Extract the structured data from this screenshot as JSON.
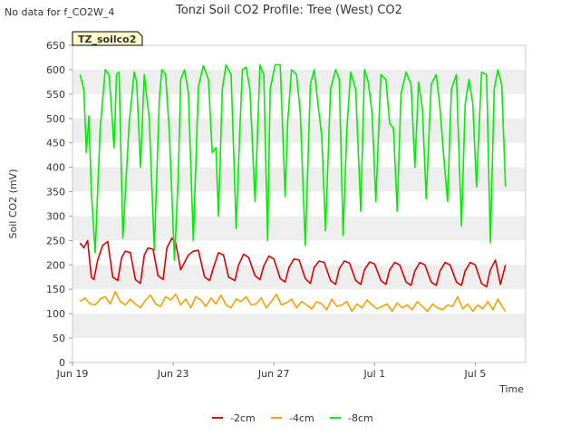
{
  "chart_data": {
    "type": "line",
    "title": "Tonzi Soil CO2 Profile: Tree (West) CO2",
    "note": "No data for f_CO2W_4",
    "badge": "TZ_soilco2",
    "xlabel": "Time",
    "ylabel": "Soil CO2 (mV)",
    "xlim": [
      0,
      18.0
    ],
    "ylim": [
      0,
      650
    ],
    "yticks": [
      0,
      50,
      100,
      150,
      200,
      250,
      300,
      350,
      400,
      450,
      500,
      550,
      600,
      650
    ],
    "xticks": [
      {
        "value": 0,
        "label": "Jun 19"
      },
      {
        "value": 4,
        "label": "Jun 23"
      },
      {
        "value": 8,
        "label": "Jun 27"
      },
      {
        "value": 12,
        "label": "Jul 1"
      },
      {
        "value": 16,
        "label": "Jul 5"
      }
    ],
    "grid": "horizontal bands",
    "legend": "bottom-center",
    "series": [
      {
        "name": "-2cm",
        "color": "#dd0000",
        "x": [
          0.3,
          0.45,
          0.6,
          0.75,
          0.85,
          1.0,
          1.2,
          1.4,
          1.6,
          1.8,
          1.95,
          2.1,
          2.3,
          2.5,
          2.7,
          2.85,
          3.0,
          3.2,
          3.4,
          3.6,
          3.75,
          3.95,
          4.1,
          4.3,
          4.45,
          4.6,
          4.8,
          5.0,
          5.25,
          5.45,
          5.6,
          5.8,
          6.0,
          6.2,
          6.45,
          6.6,
          6.8,
          7.0,
          7.25,
          7.45,
          7.6,
          7.8,
          8.0,
          8.25,
          8.45,
          8.6,
          8.8,
          9.0,
          9.25,
          9.45,
          9.6,
          9.8,
          10.0,
          10.25,
          10.45,
          10.6,
          10.8,
          11.0,
          11.25,
          11.45,
          11.6,
          11.8,
          12.0,
          12.25,
          12.45,
          12.6,
          12.8,
          13.0,
          13.25,
          13.45,
          13.6,
          13.8,
          14.0,
          14.25,
          14.45,
          14.6,
          14.8,
          15.0,
          15.25,
          15.45,
          15.6,
          15.8,
          16.0,
          16.25,
          16.45,
          16.6,
          16.8,
          17.0,
          17.2
        ],
        "y": [
          245,
          235,
          250,
          175,
          170,
          210,
          240,
          248,
          175,
          168,
          215,
          228,
          225,
          170,
          162,
          220,
          235,
          232,
          178,
          170,
          235,
          255,
          245,
          190,
          205,
          220,
          228,
          230,
          175,
          168,
          195,
          225,
          220,
          175,
          168,
          200,
          222,
          215,
          178,
          170,
          198,
          218,
          212,
          172,
          165,
          195,
          212,
          210,
          172,
          162,
          195,
          208,
          205,
          168,
          160,
          192,
          208,
          204,
          168,
          160,
          190,
          206,
          202,
          168,
          160,
          190,
          205,
          200,
          165,
          158,
          188,
          205,
          200,
          165,
          158,
          188,
          205,
          200,
          165,
          158,
          188,
          205,
          200,
          162,
          155,
          190,
          210,
          160,
          200
        ]
      },
      {
        "name": "-4cm",
        "color": "#f5a000",
        "x": [
          0.3,
          0.5,
          0.7,
          0.9,
          1.1,
          1.3,
          1.5,
          1.7,
          1.9,
          2.1,
          2.3,
          2.5,
          2.7,
          2.9,
          3.1,
          3.3,
          3.5,
          3.7,
          3.9,
          4.1,
          4.3,
          4.5,
          4.7,
          4.9,
          5.1,
          5.3,
          5.5,
          5.7,
          5.9,
          6.1,
          6.3,
          6.5,
          6.7,
          6.9,
          7.1,
          7.3,
          7.5,
          7.7,
          7.9,
          8.1,
          8.3,
          8.5,
          8.7,
          8.9,
          9.1,
          9.3,
          9.5,
          9.7,
          9.9,
          10.1,
          10.3,
          10.5,
          10.7,
          10.9,
          11.1,
          11.3,
          11.5,
          11.7,
          11.9,
          12.1,
          12.3,
          12.5,
          12.7,
          12.9,
          13.1,
          13.3,
          13.5,
          13.7,
          13.9,
          14.1,
          14.3,
          14.5,
          14.7,
          14.9,
          15.1,
          15.3,
          15.5,
          15.7,
          15.9,
          16.1,
          16.3,
          16.5,
          16.7,
          16.9,
          17.1,
          17.2
        ],
        "y": [
          125,
          132,
          120,
          118,
          130,
          135,
          120,
          145,
          125,
          118,
          130,
          120,
          112,
          128,
          138,
          120,
          115,
          135,
          128,
          140,
          118,
          130,
          112,
          135,
          128,
          115,
          132,
          120,
          138,
          118,
          112,
          130,
          125,
          135,
          118,
          120,
          132,
          112,
          125,
          140,
          118,
          122,
          130,
          112,
          125,
          118,
          110,
          125,
          120,
          108,
          130,
          115,
          118,
          125,
          105,
          120,
          112,
          128,
          118,
          110,
          115,
          120,
          105,
          122,
          112,
          118,
          108,
          125,
          115,
          105,
          120,
          112,
          108,
          118,
          115,
          135,
          110,
          120,
          105,
          118,
          110,
          125,
          108,
          130,
          112,
          105
        ]
      },
      {
        "name": "-8cm",
        "color": "#00ee00",
        "x": [
          0.3,
          0.45,
          0.55,
          0.65,
          0.75,
          0.9,
          1.1,
          1.3,
          1.45,
          1.55,
          1.65,
          1.75,
          1.85,
          2.0,
          2.25,
          2.45,
          2.55,
          2.7,
          2.85,
          3.05,
          3.25,
          3.45,
          3.55,
          3.7,
          3.85,
          4.05,
          4.2,
          4.3,
          4.45,
          4.6,
          4.8,
          5.0,
          5.2,
          5.4,
          5.55,
          5.7,
          5.8,
          5.95,
          6.1,
          6.3,
          6.5,
          6.65,
          6.75,
          6.9,
          7.05,
          7.25,
          7.45,
          7.6,
          7.75,
          7.85,
          8.05,
          8.25,
          8.45,
          8.55,
          8.7,
          8.9,
          9.05,
          9.25,
          9.45,
          9.6,
          9.75,
          9.9,
          10.05,
          10.25,
          10.45,
          10.6,
          10.75,
          10.9,
          11.05,
          11.25,
          11.45,
          11.6,
          11.75,
          11.9,
          12.05,
          12.25,
          12.45,
          12.6,
          12.75,
          12.9,
          13.05,
          13.25,
          13.45,
          13.6,
          13.75,
          13.9,
          14.05,
          14.25,
          14.45,
          14.6,
          14.75,
          14.9,
          15.05,
          15.25,
          15.45,
          15.6,
          15.75,
          15.9,
          16.05,
          16.25,
          16.45,
          16.6,
          16.75,
          16.9,
          17.05,
          17.2
        ],
        "y": [
          590,
          560,
          430,
          505,
          350,
          225,
          480,
          600,
          590,
          520,
          440,
          590,
          595,
          255,
          490,
          595,
          575,
          400,
          590,
          500,
          230,
          540,
          600,
          590,
          470,
          210,
          380,
          580,
          600,
          555,
          250,
          565,
          608,
          580,
          430,
          440,
          300,
          560,
          610,
          590,
          275,
          480,
          600,
          605,
          560,
          330,
          610,
          590,
          250,
          560,
          610,
          610,
          340,
          495,
          600,
          590,
          510,
          240,
          570,
          600,
          530,
          465,
          270,
          560,
          600,
          580,
          260,
          480,
          595,
          560,
          310,
          600,
          575,
          510,
          330,
          590,
          580,
          490,
          480,
          310,
          550,
          595,
          570,
          400,
          575,
          520,
          335,
          570,
          590,
          520,
          420,
          330,
          560,
          590,
          280,
          530,
          580,
          530,
          360,
          595,
          590,
          245,
          560,
          600,
          570,
          360
        ]
      }
    ]
  }
}
